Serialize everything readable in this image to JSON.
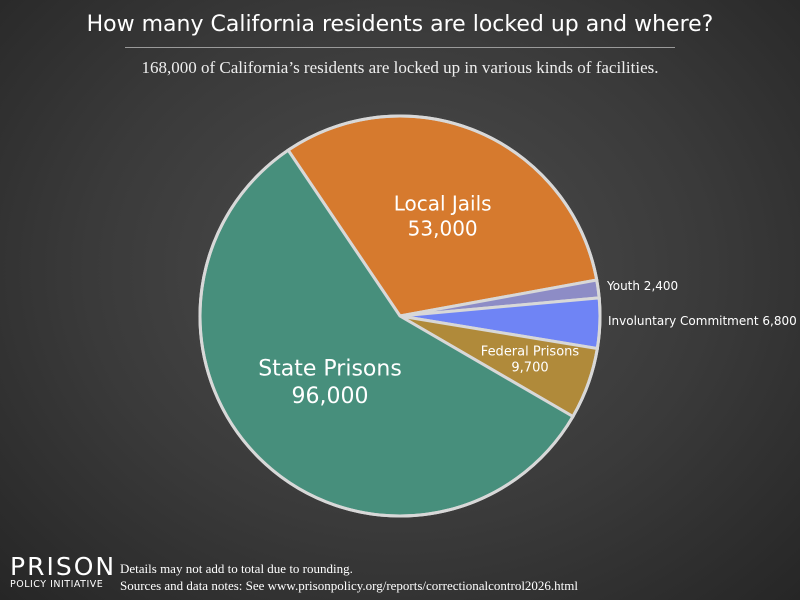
{
  "title": "How many California residents are locked up and where?",
  "subtitle": "168,000 of California’s residents are locked up in various kinds of facilities.",
  "chart_data": {
    "type": "pie",
    "slices": [
      {
        "name": "Local Jails",
        "value": 53000,
        "label_value": "53,000",
        "color": "#d67a2e"
      },
      {
        "name": "Youth",
        "value": 2400,
        "label_value": "2,400",
        "color": "#8d8cc6"
      },
      {
        "name": "Involuntary Commitment",
        "value": 6800,
        "label_value": "6,800",
        "color": "#6f84f5"
      },
      {
        "name": "Federal Prisons",
        "value": 9700,
        "label_value": "9,700",
        "color": "#b08a3a"
      },
      {
        "name": "State Prisons",
        "value": 96000,
        "label_value": "96,000",
        "color": "#478f7c"
      }
    ],
    "order": "clockwise"
  },
  "footer": {
    "logo_top": "PRISON",
    "logo_bottom": "POLICY INITIATIVE",
    "note1": "Details may not add to total due to rounding.",
    "note2": "Sources and data notes: See www.prisonpolicy.org/reports/correctionalcontrol2026.html"
  }
}
